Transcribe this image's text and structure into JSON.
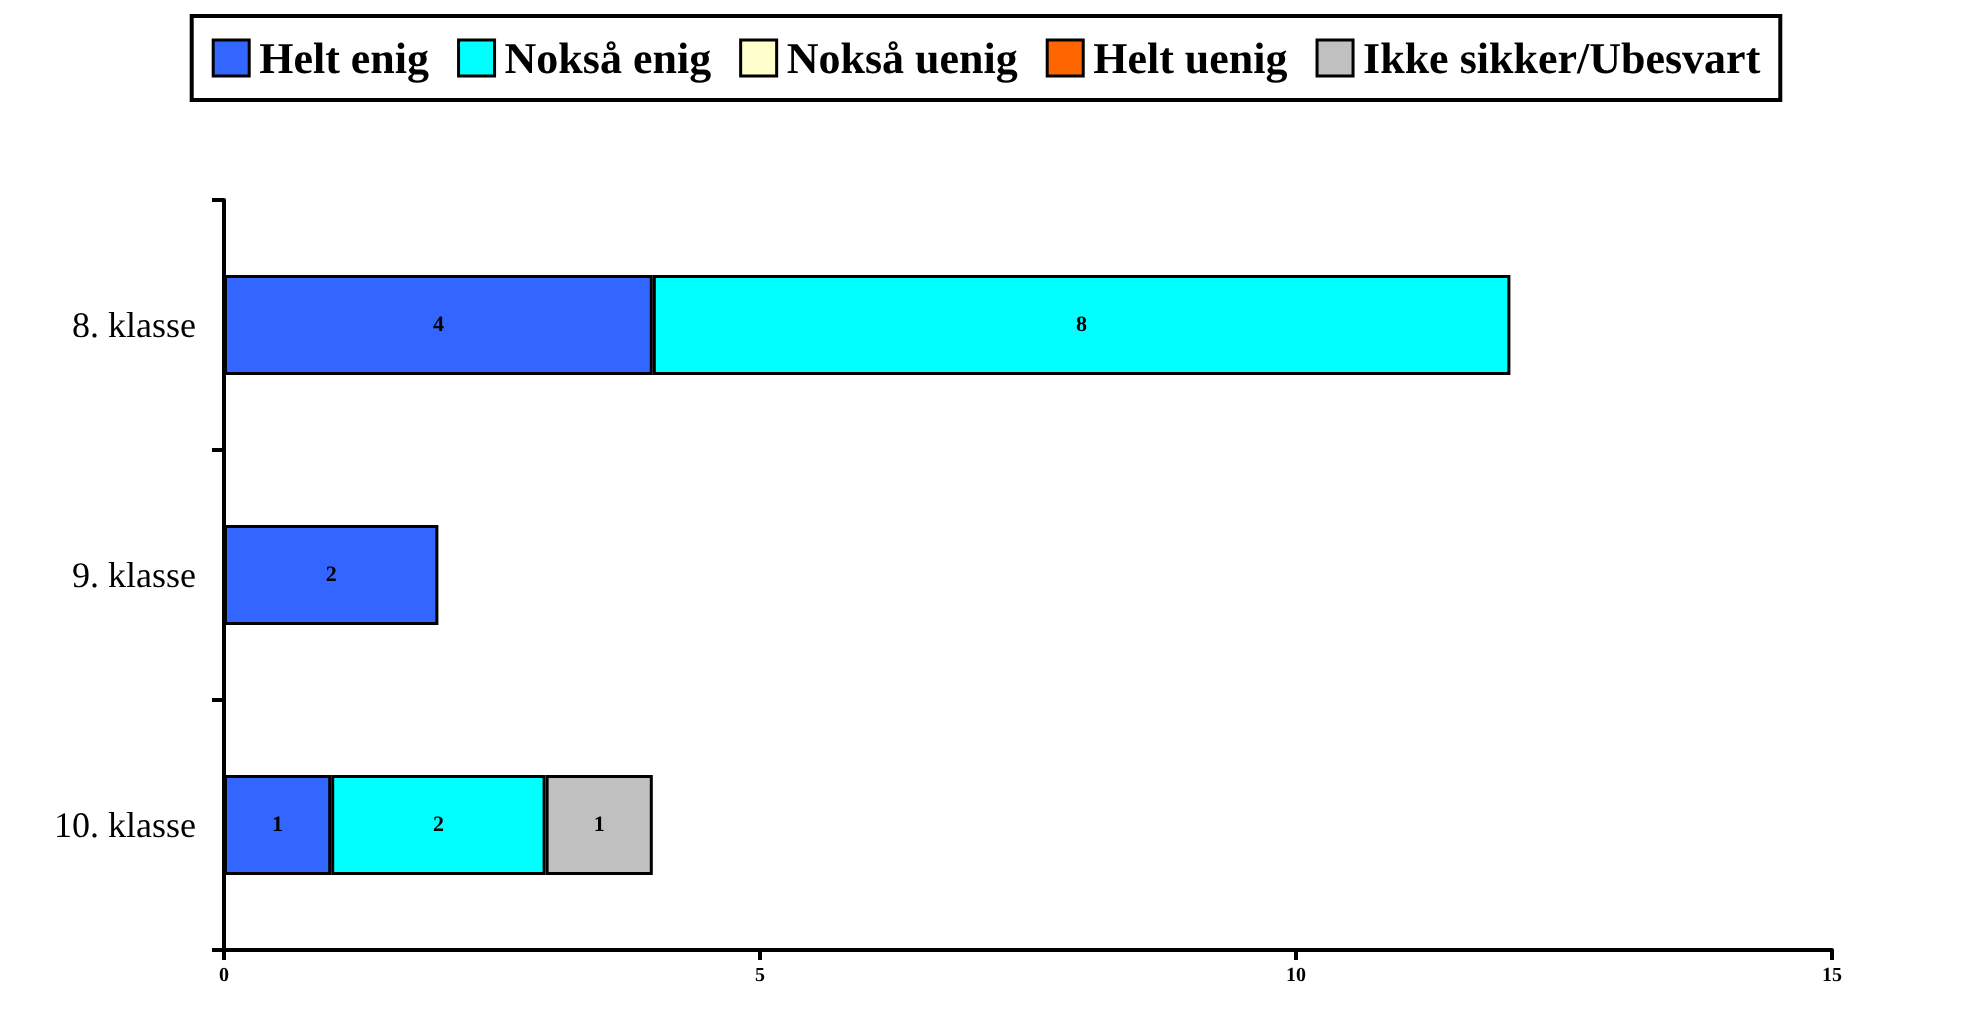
{
  "chart_data": {
    "type": "bar",
    "orientation": "horizontal",
    "stacked": true,
    "data_labels": true,
    "legend": "top",
    "categories": [
      "8. klasse",
      "9. klasse",
      "10. klasse"
    ],
    "series": [
      {
        "name": "Helt enig",
        "color": "#3366ff",
        "values": [
          4,
          2,
          1
        ]
      },
      {
        "name": "Nokså enig",
        "color": "#00ffff",
        "values": [
          8,
          null,
          2
        ]
      },
      {
        "name": "Nokså uenig",
        "color": "#ffffcc",
        "values": [
          null,
          null,
          null
        ]
      },
      {
        "name": "Helt uenig",
        "color": "#ff6600",
        "values": [
          null,
          null,
          null
        ]
      },
      {
        "name": "Ikke sikker/Ubesvart",
        "color": "#c0c0c0",
        "values": [
          null,
          null,
          1
        ]
      }
    ],
    "xlim": [
      0,
      15
    ],
    "xticks": [
      0,
      5,
      10,
      15
    ]
  }
}
